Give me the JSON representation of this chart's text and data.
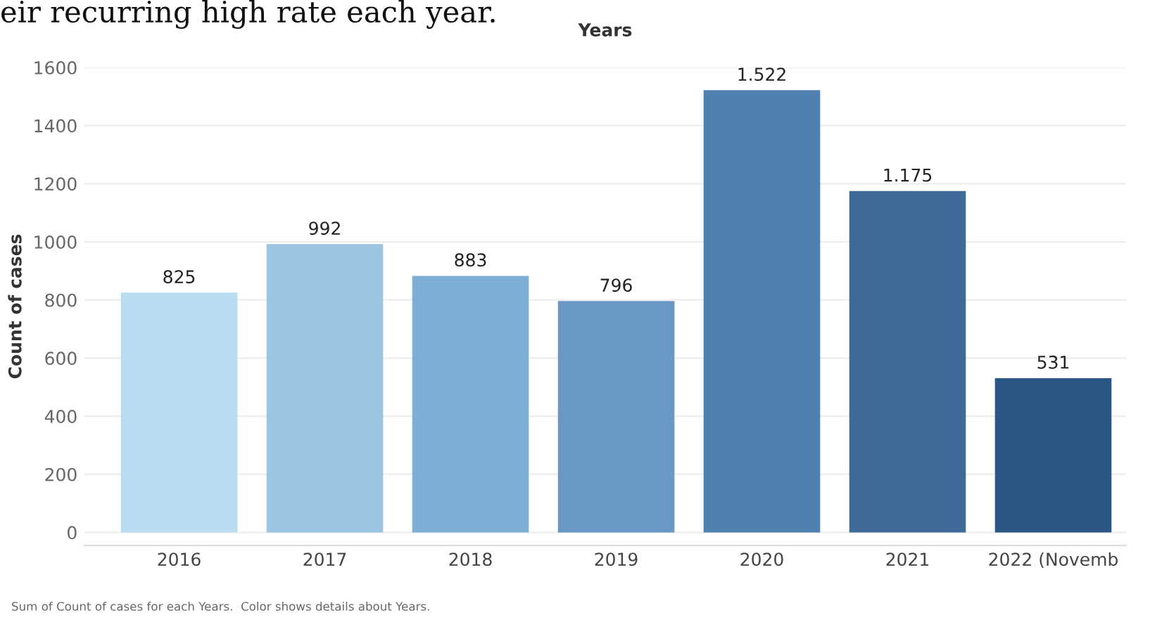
{
  "chart_data": {
    "type": "bar",
    "xlabel": "Years",
    "ylabel": "Count of cases",
    "categories": [
      "2016",
      "2017",
      "2018",
      "2019",
      "2020",
      "2021",
      "2022 (Novemb"
    ],
    "values": [
      825,
      992,
      883,
      796,
      1522,
      1175,
      531
    ],
    "value_labels": [
      "825",
      "992",
      "883",
      "796",
      "1.522",
      "1.175",
      "531"
    ],
    "colors": [
      "#b9ddf0",
      "#9cc5e3",
      "#7eaed4",
      "#6898c3",
      "#4f80b0",
      "#3e6b98",
      "#2c5784"
    ],
    "ylim": [
      -45,
      1600
    ],
    "yticks": [
      0,
      200,
      400,
      600,
      800,
      1000,
      1200,
      1400,
      1600
    ],
    "grid": "y",
    "annotations": [
      "eir recurring high rate each year.",
      "Sum of Count of cases for each Years.  Color shows details about Years."
    ]
  }
}
